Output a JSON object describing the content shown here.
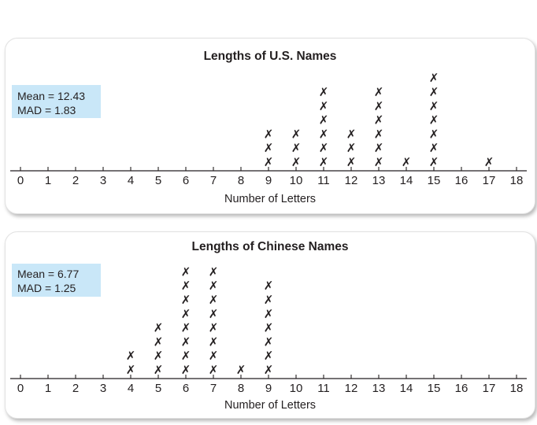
{
  "chart_data": [
    {
      "type": "dot plot",
      "title": "Lengths of U.S. Names",
      "xlabel": "Number of Letters",
      "xlim": [
        0,
        18
      ],
      "ticks": [
        "0",
        "1",
        "2",
        "3",
        "4",
        "5",
        "6",
        "7",
        "8",
        "9",
        "10",
        "11",
        "12",
        "13",
        "14",
        "15",
        "16",
        "17",
        "18"
      ],
      "mark": "✗",
      "x": [
        9,
        10,
        11,
        12,
        13,
        14,
        15,
        17
      ],
      "counts": [
        3,
        3,
        6,
        3,
        6,
        1,
        7,
        1
      ],
      "stats": [
        "Mean = 12.43",
        "MAD = 1.83"
      ]
    },
    {
      "type": "dot plot",
      "title": "Lengths of Chinese Names",
      "xlabel": "Number of Letters",
      "xlim": [
        0,
        18
      ],
      "ticks": [
        "0",
        "1",
        "2",
        "3",
        "4",
        "5",
        "6",
        "7",
        "8",
        "9",
        "10",
        "11",
        "12",
        "13",
        "14",
        "15",
        "16",
        "17",
        "18"
      ],
      "mark": "✗",
      "x": [
        4,
        5,
        6,
        7,
        8,
        9
      ],
      "counts": [
        2,
        4,
        8,
        8,
        1,
        7
      ],
      "stats": [
        "Mean = 6.77",
        "MAD = 1.25"
      ]
    }
  ],
  "colors": {
    "stat_box": "#c9e7f8",
    "text": "#231f20",
    "axis": "#231f20"
  }
}
